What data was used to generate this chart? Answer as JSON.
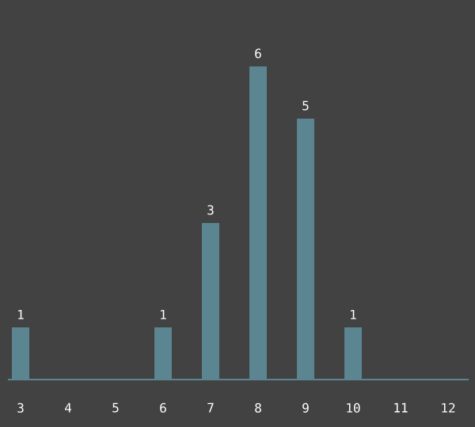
{
  "chart_data": {
    "type": "bar",
    "categories": [
      "3",
      "4",
      "5",
      "6",
      "7",
      "8",
      "9",
      "10",
      "11",
      "12"
    ],
    "values": [
      1,
      0,
      0,
      1,
      3,
      6,
      5,
      1,
      0,
      0
    ],
    "value_labels": [
      "1",
      null,
      null,
      "1",
      "3",
      "6",
      "5",
      "1",
      null,
      null
    ],
    "color": "#5a8591"
  }
}
